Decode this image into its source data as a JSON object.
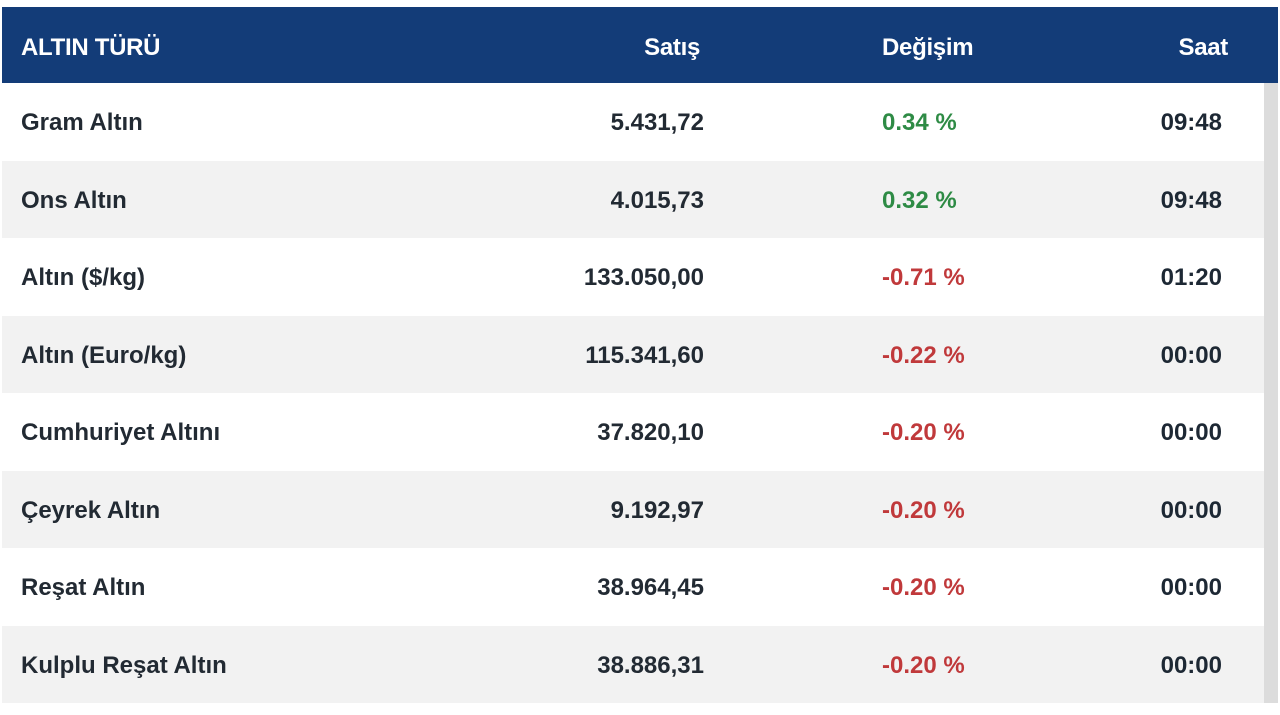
{
  "header": {
    "type": "ALTIN TÜRÜ",
    "sale": "Satış",
    "change": "Değişim",
    "time": "Saat"
  },
  "colors": {
    "header_bg": "#133c78",
    "positive": "#2e8b45",
    "negative": "#c0393b",
    "row_alt": "#f2f2f2"
  },
  "rows": [
    {
      "type": "Gram Altın",
      "sale": "5.431,72",
      "change": "0.34 %",
      "time": "09:48",
      "direction": "up"
    },
    {
      "type": "Ons Altın",
      "sale": "4.015,73",
      "change": "0.32 %",
      "time": "09:48",
      "direction": "up"
    },
    {
      "type": "Altın ($/kg)",
      "sale": "133.050,00",
      "change": "-0.71 %",
      "time": "01:20",
      "direction": "down"
    },
    {
      "type": "Altın (Euro/kg)",
      "sale": "115.341,60",
      "change": "-0.22 %",
      "time": "00:00",
      "direction": "down"
    },
    {
      "type": "Cumhuriyet Altını",
      "sale": "37.820,10",
      "change": "-0.20 %",
      "time": "00:00",
      "direction": "down"
    },
    {
      "type": "Çeyrek Altın",
      "sale": "9.192,97",
      "change": "-0.20 %",
      "time": "00:00",
      "direction": "down"
    },
    {
      "type": "Reşat Altın",
      "sale": "38.964,45",
      "change": "-0.20 %",
      "time": "00:00",
      "direction": "down"
    },
    {
      "type": "Kulplu Reşat Altın",
      "sale": "38.886,31",
      "change": "-0.20 %",
      "time": "00:00",
      "direction": "down"
    }
  ]
}
